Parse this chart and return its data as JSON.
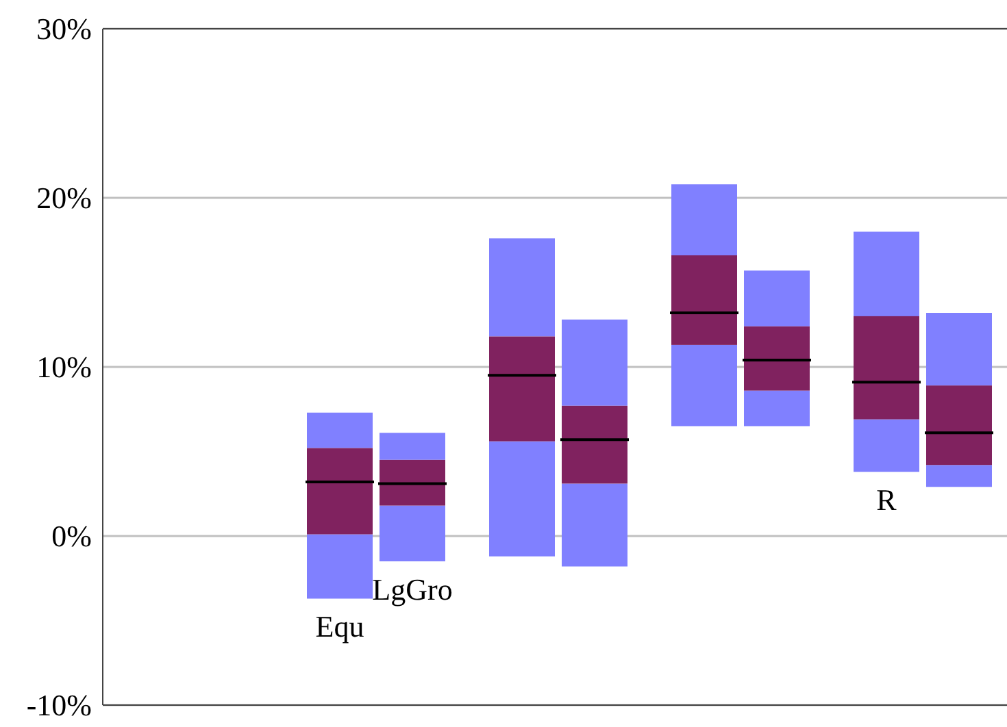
{
  "chart_data": {
    "type": "box",
    "categories": [
      null,
      null,
      null,
      null,
      null
    ],
    "series": [
      {
        "color": "#80225f",
        "boxes": [
          null,
          {
            "low": -3.7,
            "q1": 0.1,
            "median": 3.2,
            "q3": 5.2,
            "high": 7.3
          },
          {
            "low": -1.2,
            "q1": 5.6,
            "median": 9.5,
            "q3": 11.8,
            "high": 17.6
          },
          {
            "low": 6.5,
            "q1": 11.3,
            "median": 13.2,
            "q3": 16.6,
            "high": 20.8
          },
          {
            "low": 3.8,
            "q1": 6.9,
            "median": 9.1,
            "q3": 13.0,
            "high": 18.0
          }
        ]
      },
      {
        "color": "#80225f",
        "boxes": [
          null,
          {
            "low": -1.5,
            "q1": 1.8,
            "median": 3.1,
            "q3": 4.5,
            "high": 6.1
          },
          {
            "low": -1.8,
            "q1": 3.1,
            "median": 5.7,
            "q3": 7.7,
            "high": 12.8
          },
          {
            "low": 6.5,
            "q1": 8.6,
            "median": 10.4,
            "q3": 12.4,
            "high": 15.7
          },
          {
            "low": 2.9,
            "q1": 4.2,
            "median": 6.1,
            "q3": 8.9,
            "high": 13.2
          }
        ]
      }
    ],
    "annotations": [
      "Equ",
      "LgGro",
      "R"
    ],
    "ylim": [
      -10,
      30
    ],
    "yticks": [
      {
        "value": -10,
        "label": "-10%"
      },
      {
        "value": 0,
        "label": "0%"
      },
      {
        "value": 10,
        "label": "10%"
      },
      {
        "value": 20,
        "label": "20%"
      },
      {
        "value": 30,
        "label": "30%"
      }
    ],
    "grid": true
  }
}
